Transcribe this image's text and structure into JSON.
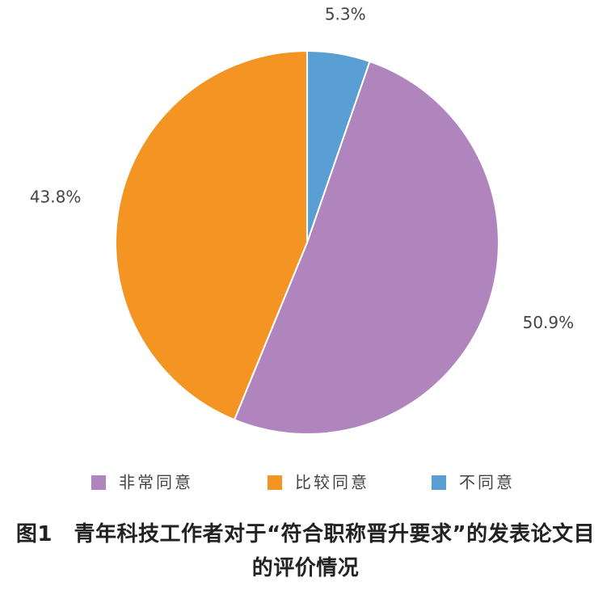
{
  "chart_data": {
    "type": "pie",
    "title": "图1　青年科技工作者对于“符合职称晋升要求”的发表论文目的评价情况",
    "categories": [
      "非常同意",
      "比较同意",
      "不同意"
    ],
    "values": [
      50.9,
      43.8,
      5.3
    ],
    "value_labels": [
      "50.9%",
      "43.8%",
      "5.3%"
    ],
    "colors": [
      "#b085be",
      "#f39423",
      "#5a9fd4"
    ]
  }
}
